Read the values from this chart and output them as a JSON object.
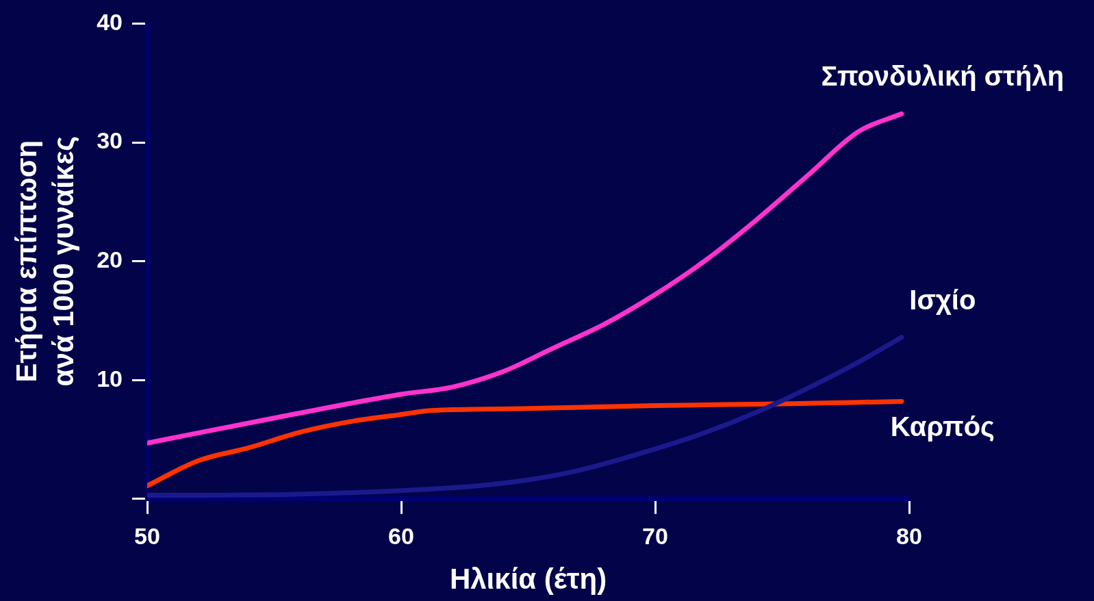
{
  "chart_data": {
    "type": "line",
    "xlabel": "Ηλικία (έτη)",
    "ylabel": "Ετήσια επίπτωση\nανά 1000 γυναίκες",
    "xlim": [
      50,
      80
    ],
    "ylim": [
      0,
      40
    ],
    "xticks": [
      50,
      60,
      70,
      80
    ],
    "yticks": [
      {
        "value": 0,
        "label": null
      },
      10,
      20,
      30,
      40
    ],
    "grid": false,
    "legend": false,
    "marker": "none",
    "line_style": "solid",
    "series": [
      {
        "name": "Σπονδυλική στήλη",
        "color": "#ff33cc",
        "x": [
          50,
          55,
          60,
          62,
          64,
          66,
          68,
          70,
          72,
          74,
          76,
          78,
          79.7
        ],
        "values": [
          4.7,
          6.8,
          8.8,
          9.4,
          10.7,
          12.7,
          14.7,
          17.2,
          20.1,
          23.5,
          27.2,
          30.9,
          32.4
        ]
      },
      {
        "name": "Ισχίο",
        "color": "#1a1a8c",
        "x": [
          50,
          55,
          60,
          63,
          65,
          67,
          70,
          72,
          74,
          76,
          78,
          79.7
        ],
        "values": [
          0.3,
          0.35,
          0.7,
          1.1,
          1.6,
          2.4,
          4.2,
          5.6,
          7.3,
          9.3,
          11.5,
          13.6
        ]
      },
      {
        "name": "Καρπός",
        "color": "#ff3300",
        "x": [
          50,
          52,
          54,
          56,
          58,
          60,
          61,
          62,
          65,
          70,
          75,
          79.7
        ],
        "values": [
          1.1,
          3.2,
          4.3,
          5.6,
          6.5,
          7.1,
          7.4,
          7.5,
          7.6,
          7.85,
          8.0,
          8.2
        ]
      }
    ]
  }
}
